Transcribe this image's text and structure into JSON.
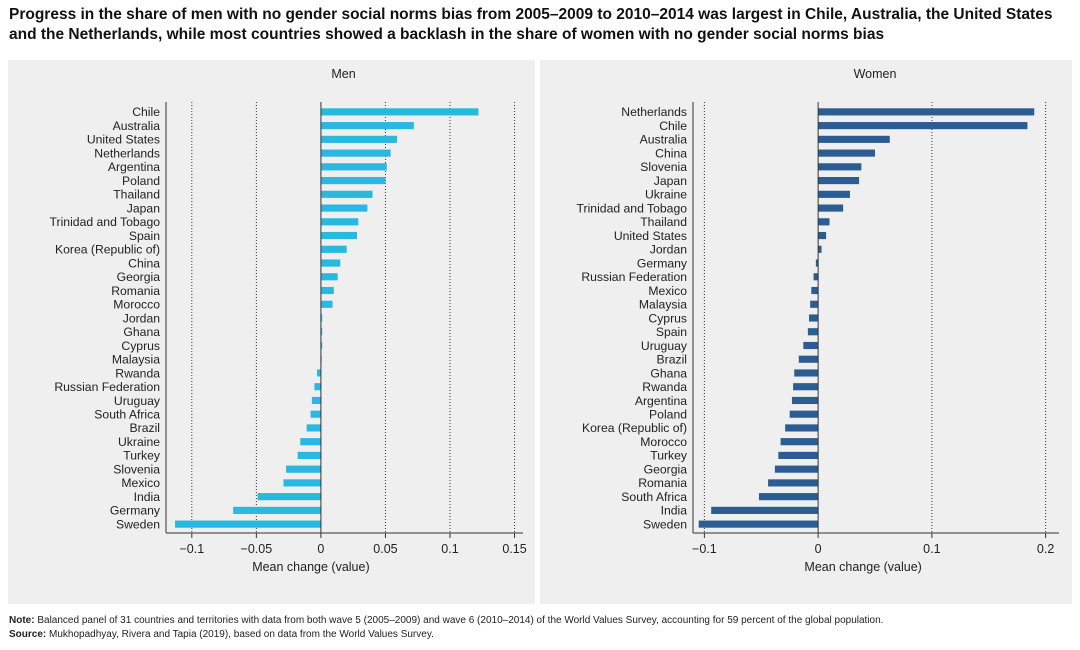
{
  "header": {
    "title_line1": "Progress in the share of men with no gender social norms bias from 2005–2009 to 2010–2014 was largest in Chile, Australia, the United States",
    "title_line2": "and the Netherlands, while most countries showed a backlash in the share of women with no gender social norms bias"
  },
  "chart_data": [
    {
      "type": "bar",
      "orientation": "horizontal",
      "title": "Men",
      "xlabel": "Mean change (value)",
      "xlim": [
        -0.12,
        0.155
      ],
      "xticks": [
        -0.1,
        -0.05,
        0,
        0.05,
        0.1,
        0.15
      ],
      "xtick_labels": [
        "−0.1",
        "−0.05",
        "0",
        "0.05",
        "0.1",
        "0.15"
      ],
      "bar_color": "#29b8e0",
      "categories": [
        "Chile",
        "Australia",
        "United States",
        "Netherlands",
        "Argentina",
        "Poland",
        "Thailand",
        "Japan",
        "Trinidad and Tobago",
        "Spain",
        "Korea (Republic of)",
        "China",
        "Georgia",
        "Romania",
        "Morocco",
        "Jordan",
        "Ghana",
        "Cyprus",
        "Malaysia",
        "Rwanda",
        "Russian Federation",
        "Uruguay",
        "South Africa",
        "Brazil",
        "Ukraine",
        "Turkey",
        "Slovenia",
        "Mexico",
        "India",
        "Germany",
        "Sweden"
      ],
      "values": [
        0.122,
        0.072,
        0.059,
        0.054,
        0.051,
        0.05,
        0.04,
        0.036,
        0.029,
        0.028,
        0.02,
        0.015,
        0.013,
        0.01,
        0.009,
        0.001,
        0.001,
        0.001,
        0,
        -0.003,
        -0.005,
        -0.007,
        -0.008,
        -0.011,
        -0.016,
        -0.018,
        -0.027,
        -0.029,
        -0.049,
        -0.068,
        -0.113
      ]
    },
    {
      "type": "bar",
      "orientation": "horizontal",
      "title": "Women",
      "xlabel": "Mean change (value)",
      "xlim": [
        -0.11,
        0.21
      ],
      "xticks": [
        -0.1,
        0,
        0.1,
        0.2
      ],
      "xtick_labels": [
        "−0.1",
        "0",
        "0.1",
        "0.2"
      ],
      "bar_color": "#2c5d92",
      "categories": [
        "Netherlands",
        "Chile",
        "Australia",
        "China",
        "Slovenia",
        "Japan",
        "Ukraine",
        "Trinidad and Tobago",
        "Thailand",
        "United States",
        "Jordan",
        "Germany",
        "Russian Federation",
        "Mexico",
        "Malaysia",
        "Cyprus",
        "Spain",
        "Uruguay",
        "Brazil",
        "Ghana",
        "Rwanda",
        "Argentina",
        "Poland",
        "Korea (Republic of)",
        "Morocco",
        "Turkey",
        "Georgia",
        "Romania",
        "South Africa",
        "India",
        "Sweden"
      ],
      "values": [
        0.19,
        0.184,
        0.063,
        0.05,
        0.038,
        0.036,
        0.028,
        0.022,
        0.01,
        0.007,
        0.003,
        -0.002,
        -0.004,
        -0.006,
        -0.007,
        -0.008,
        -0.009,
        -0.013,
        -0.017,
        -0.021,
        -0.022,
        -0.023,
        -0.025,
        -0.029,
        -0.033,
        -0.035,
        -0.038,
        -0.044,
        -0.052,
        -0.094,
        -0.105
      ]
    }
  ],
  "footer": {
    "note_label": "Note:",
    "note_text": " Balanced panel of 31 countries and territories with data from both wave 5 (2005–2009) and wave 6 (2010–2014) of the World Values Survey, accounting for 59 percent of the global population.",
    "source_label": "Source:",
    "source_text": " Mukhopadhyay, Rivera and Tapia (2019), based on data from the World Values Survey."
  }
}
